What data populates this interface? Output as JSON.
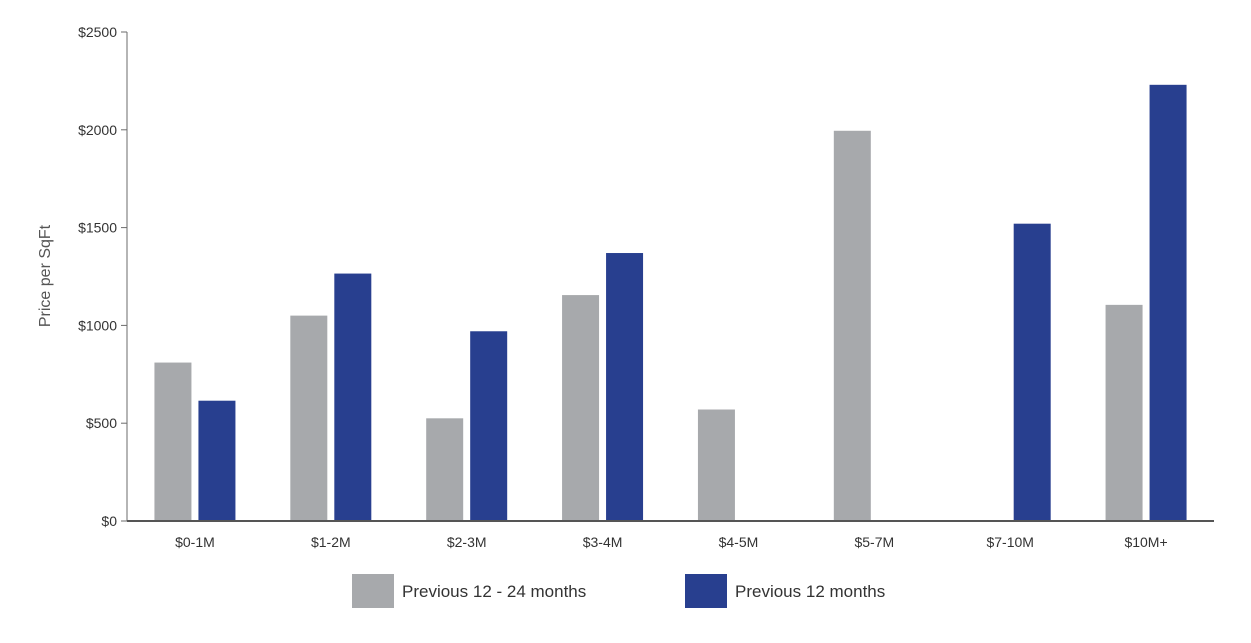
{
  "chart_data": {
    "type": "bar",
    "title": "",
    "xlabel": "",
    "ylabel": "Price per SqFt",
    "ylim": [
      0,
      2500
    ],
    "yticks": [
      0,
      500,
      1000,
      1500,
      2000,
      2500
    ],
    "ytick_labels": [
      "$0",
      "$500",
      "$1000",
      "$1500",
      "$2000",
      "$2500"
    ],
    "categories": [
      "$0-1M",
      "$1-2M",
      "$2-3M",
      "$3-4M",
      "$4-5M",
      "$5-7M",
      "$7-10M",
      "$10M+"
    ],
    "series": [
      {
        "name": "Previous 12 - 24 months",
        "color": "#a7a9ac",
        "values": [
          810,
          1050,
          525,
          1155,
          570,
          1995,
          null,
          1105
        ]
      },
      {
        "name": "Previous 12 months",
        "color": "#283f8f",
        "values": [
          615,
          1265,
          970,
          1370,
          null,
          null,
          1520,
          2230
        ]
      }
    ],
    "grid": false,
    "legend_position": "bottom"
  }
}
